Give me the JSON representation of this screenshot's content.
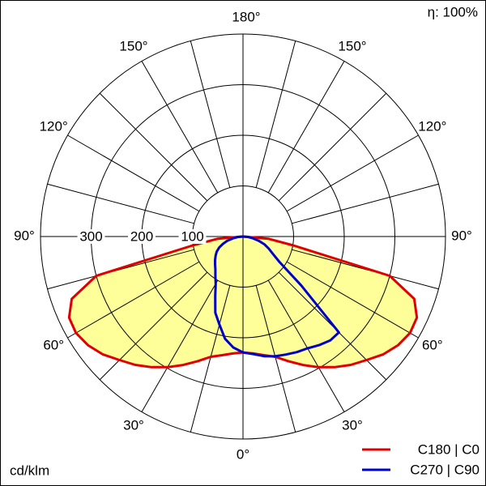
{
  "chart_data": {
    "type": "polar",
    "efficiency_label": "η: 100%",
    "unit_label": "cd/klm",
    "rlim": [
      0,
      400
    ],
    "rticks": [
      100,
      200,
      300
    ],
    "angle_grid_step": 15,
    "angle_ticks": [
      {
        "value": 0,
        "label": "0°"
      },
      {
        "value": 30,
        "label": "30°"
      },
      {
        "value": 60,
        "label": "60°"
      },
      {
        "value": 90,
        "label": "90°"
      },
      {
        "value": 120,
        "label": "120°"
      },
      {
        "value": 150,
        "label": "150°"
      },
      {
        "value": 180,
        "label": "180°"
      }
    ],
    "fill_color": "#ffff99",
    "x": [
      -90,
      -85,
      -80,
      -75,
      -70,
      -65,
      -60,
      -55,
      -50,
      -45,
      -40,
      -35,
      -30,
      -25,
      -20,
      -15,
      -10,
      -5,
      0,
      5,
      10,
      15,
      20,
      25,
      30,
      35,
      40,
      45,
      50,
      55,
      60,
      65,
      70,
      75,
      80,
      85,
      90
    ],
    "series": [
      {
        "name": "C180 | C0",
        "color": "#e00000",
        "filled": true,
        "values": [
          0,
          50,
          101,
          300,
          360,
          379,
          381,
          374,
          362,
          345,
          331,
          315,
          298,
          280,
          262,
          246,
          238,
          232,
          229,
          232,
          238,
          246,
          262,
          280,
          298,
          315,
          331,
          345,
          362,
          374,
          381,
          379,
          360,
          300,
          101,
          50,
          0
        ]
      },
      {
        "name": "C270 | C90",
        "color": "#0000cc",
        "filled": false,
        "values": [
          0,
          10,
          20,
          32,
          42,
          52,
          60,
          66,
          72,
          78,
          85,
          95,
          108,
          130,
          160,
          180,
          205,
          220,
          229,
          233,
          240,
          245,
          248,
          252,
          255,
          262,
          268,
          268,
          150,
          88,
          68,
          56,
          45,
          32,
          20,
          10,
          0
        ]
      }
    ]
  }
}
